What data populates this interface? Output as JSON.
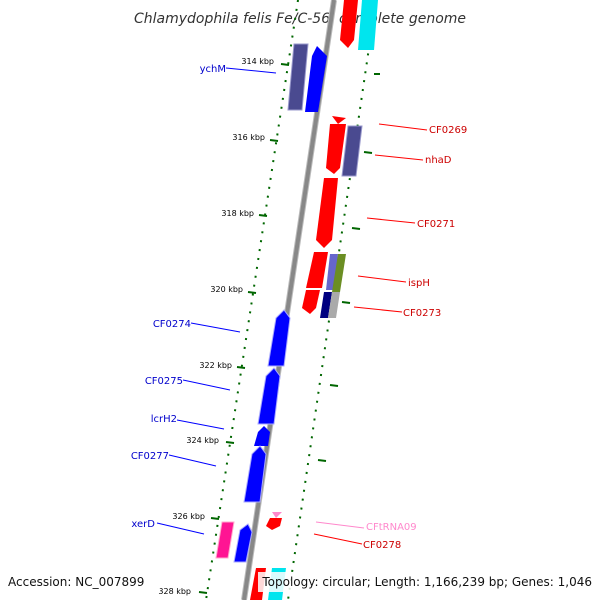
{
  "title": "Chlamydophila felis Fe/C-56, complete genome",
  "footer": {
    "accession": "Accession: NC_007899",
    "topology": "Topology: circular; Length: 1,166,239 bp; Genes: 1,046"
  },
  "colors": {
    "forward_gene": "#0000ff",
    "reverse_gene": "#ff0000",
    "forward_label": "#0000cc",
    "reverse_label": "#cc0000",
    "trna_label": "#ff88cc",
    "backbone": "#888888",
    "tick": "#006600",
    "cds_forward_alt": "#4a4a90",
    "cds_reverse_alt": "#4a4a90",
    "highlight_cyan": "#00e5ee",
    "highlight_magenta": "#ff1493",
    "highlight_olive": "#6b8e23"
  },
  "ticks": [
    "314 kbp",
    "316 kbp",
    "318 kbp",
    "320 kbp",
    "322 kbp",
    "324 kbp",
    "326 kbp",
    "328 kbp"
  ],
  "genes_left": [
    {
      "label": "ychM"
    },
    {
      "label": "CF0274"
    },
    {
      "label": "CF0275"
    },
    {
      "label": "lcrH2"
    },
    {
      "label": "CF0277"
    },
    {
      "label": "xerD"
    }
  ],
  "genes_right": [
    {
      "label": "CF0269"
    },
    {
      "label": "nhaD"
    },
    {
      "label": "CF0271"
    },
    {
      "label": "ispH"
    },
    {
      "label": "CF0273"
    },
    {
      "label": "CFtRNA09"
    },
    {
      "label": "CF0278"
    }
  ]
}
